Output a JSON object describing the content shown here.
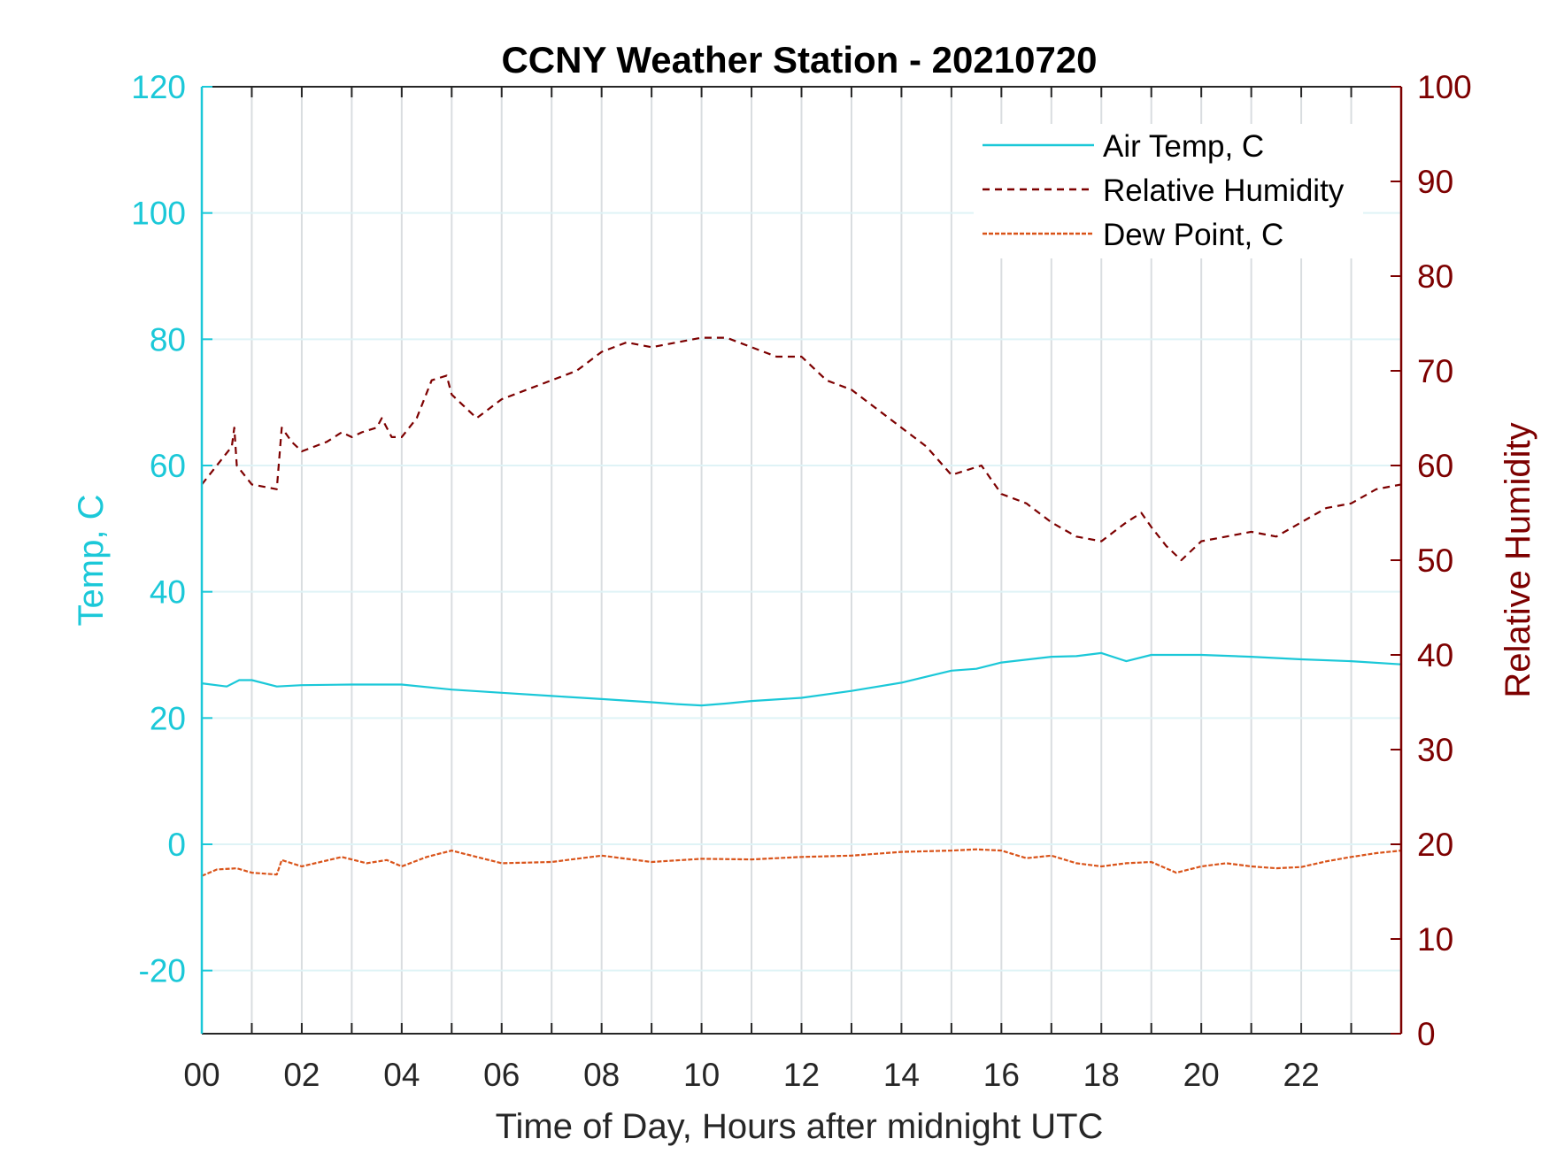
{
  "chart_data": {
    "type": "line",
    "title": "CCNY Weather Station - 20210720",
    "xlabel": "Time of Day, Hours after midnight UTC",
    "ylabel_left": "Temp, C",
    "ylabel_right": "Relative Humidity",
    "xlim": [
      0,
      24
    ],
    "ylim_left": [
      -30,
      120
    ],
    "ylim_right": [
      0,
      100
    ],
    "x_tick_labels": [
      "00",
      "02",
      "04",
      "06",
      "08",
      "10",
      "12",
      "14",
      "16",
      "18",
      "20",
      "22"
    ],
    "y_left_ticks": [
      "-20",
      "0",
      "20",
      "40",
      "60",
      "80",
      "100",
      "120"
    ],
    "y_right_ticks": [
      "0",
      "10",
      "20",
      "30",
      "40",
      "50",
      "60",
      "70",
      "80",
      "90",
      "100"
    ],
    "grid": true,
    "legend_position": "top-right",
    "colors": {
      "left_axis": "#1bc8d8",
      "right_axis": "#7d0000",
      "air_temp": "#1bc8d8",
      "humidity": "#7d0000",
      "dew_point": "#d95319",
      "grid": "#d9dde0"
    },
    "series": [
      {
        "name": "Air Temp, C",
        "axis": "left",
        "style": "solid",
        "x": [
          0,
          0.5,
          0.75,
          1,
          1.5,
          2,
          3,
          4,
          5,
          6,
          7,
          8,
          9,
          9.5,
          10,
          10.5,
          11,
          12,
          13,
          14,
          15,
          15.5,
          16,
          17,
          17.5,
          18,
          18.5,
          19,
          20,
          21,
          22,
          23,
          24
        ],
        "y": [
          25.5,
          25.0,
          26.0,
          26.0,
          25.0,
          25.2,
          25.3,
          25.3,
          24.5,
          24.0,
          23.5,
          23.0,
          22.5,
          22.2,
          22.0,
          22.3,
          22.7,
          23.2,
          24.3,
          25.6,
          27.5,
          27.8,
          28.8,
          29.7,
          29.8,
          30.3,
          29.0,
          30.0,
          30.0,
          29.7,
          29.3,
          29.0,
          28.5
        ]
      },
      {
        "name": "Relative Humidity",
        "axis": "right",
        "style": "dashed",
        "x": [
          0,
          0.3,
          0.6,
          0.65,
          0.7,
          1,
          1.5,
          1.6,
          1.8,
          2,
          2.5,
          2.8,
          3,
          3.2,
          3.5,
          3.6,
          3.8,
          4,
          4.3,
          4.6,
          4.9,
          5,
          5.3,
          5.5,
          6,
          6.5,
          7,
          7.5,
          8,
          8.5,
          9,
          9.5,
          10,
          10.5,
          11,
          11.5,
          12,
          12.5,
          13,
          13.5,
          14,
          14.5,
          15,
          15.3,
          15.6,
          16,
          16.5,
          17,
          17.5,
          18,
          18.5,
          18.8,
          19,
          19.3,
          19.6,
          20,
          20.5,
          21,
          21.5,
          22,
          22.5,
          23,
          23.5,
          24
        ],
        "y": [
          58,
          60,
          62,
          64,
          60,
          58,
          57.5,
          64,
          62.5,
          61.5,
          62.5,
          63.5,
          63,
          63.5,
          64,
          65,
          63,
          63,
          65,
          69,
          69.5,
          67.5,
          66,
          65,
          67,
          68,
          69,
          70,
          72,
          73,
          72.5,
          73,
          73.5,
          73.5,
          72.5,
          71.5,
          71.5,
          69,
          68,
          66,
          64,
          62,
          59,
          59.5,
          60,
          57,
          56,
          54,
          52.5,
          52,
          54,
          55,
          53.5,
          51.5,
          50,
          52,
          52.5,
          53,
          52.5,
          54,
          55.5,
          56,
          57.5,
          58
        ]
      },
      {
        "name": "Dew Point, C",
        "axis": "left",
        "style": "dashed",
        "x": [
          0,
          0.3,
          0.7,
          1,
          1.5,
          1.6,
          2,
          2.8,
          3.3,
          3.7,
          4,
          4.5,
          5,
          5.5,
          6,
          7,
          8,
          9,
          10,
          11,
          12,
          13,
          14,
          15,
          15.5,
          16,
          16.5,
          17,
          17.5,
          18,
          18.5,
          19,
          19.5,
          20,
          20.5,
          21,
          21.5,
          22,
          22.5,
          23,
          23.5,
          24
        ],
        "y": [
          -5,
          -4,
          -3.8,
          -4.5,
          -4.8,
          -2.5,
          -3.5,
          -2,
          -3,
          -2.5,
          -3.5,
          -2,
          -1,
          -2,
          -3,
          -2.8,
          -1.8,
          -2.8,
          -2.3,
          -2.4,
          -2.0,
          -1.8,
          -1.2,
          -1.0,
          -0.8,
          -1.0,
          -2.2,
          -1.8,
          -3.0,
          -3.5,
          -3.0,
          -2.8,
          -4.5,
          -3.5,
          -3.0,
          -3.5,
          -3.8,
          -3.6,
          -2.7,
          -2.0,
          -1.4,
          -1.0
        ]
      }
    ]
  }
}
